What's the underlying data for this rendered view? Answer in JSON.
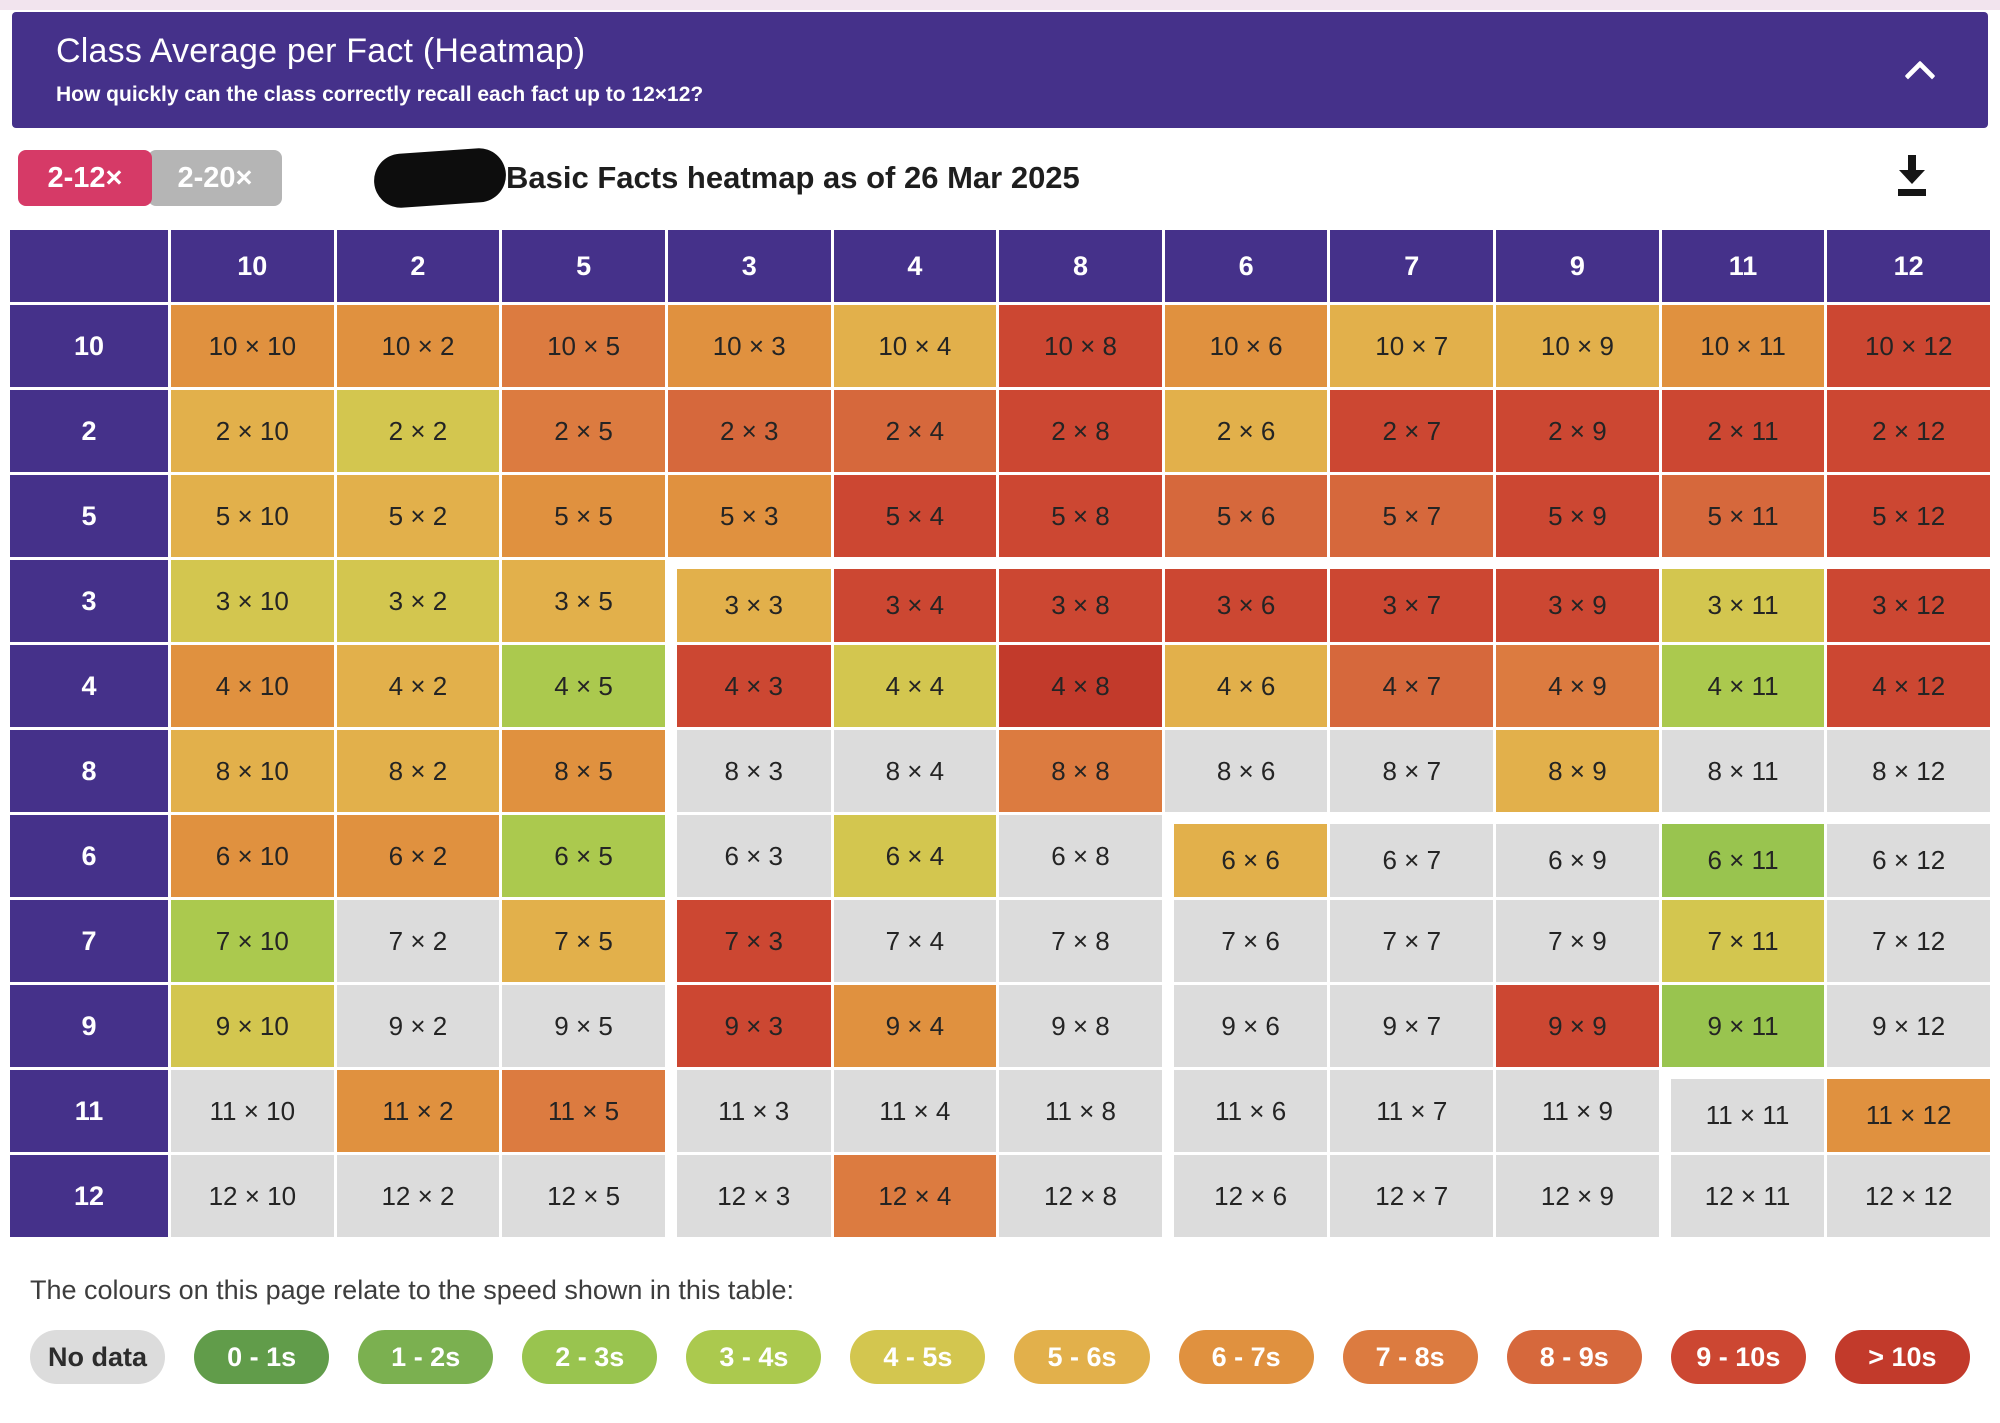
{
  "header": {
    "title": "Class Average per Fact (Heatmap)",
    "subtitle": "How quickly can the class correctly recall each fact up to 12×12?",
    "bg_color": "#45318a",
    "collapse_icon": "chevron-up"
  },
  "toolbar": {
    "buttons": [
      {
        "label": "2-12×",
        "active": true,
        "color": "#d63a67"
      },
      {
        "label": "2-20×",
        "active": false,
        "color": "#b5b5b5"
      }
    ],
    "redacted_class_name": true,
    "title": "Basic Facts heatmap as of 26 Mar 2025",
    "download_icon": "download-arrow"
  },
  "heatmap": {
    "type": "heatmap",
    "times_symbol": "×",
    "columns": [
      "10",
      "2",
      "5",
      "3",
      "4",
      "8",
      "6",
      "7",
      "9",
      "11",
      "12"
    ],
    "rows": [
      "10",
      "2",
      "5",
      "3",
      "4",
      "8",
      "6",
      "7",
      "9",
      "11",
      "12"
    ],
    "group_starts": [
      3,
      6,
      9
    ],
    "cell_buckets": [
      [
        "6-7",
        "6-7",
        "7-8",
        "6-7",
        "5-6",
        "9-10",
        "6-7",
        "5-6",
        "5-6",
        "6-7",
        "9-10"
      ],
      [
        "5-6",
        "4-5",
        "7-8",
        "8-9",
        "8-9",
        "9-10",
        "5-6",
        "9-10",
        "9-10",
        "9-10",
        "9-10"
      ],
      [
        "5-6",
        "5-6",
        "6-7",
        "6-7",
        "9-10",
        "9-10",
        "8-9",
        "8-9",
        "9-10",
        "8-9",
        "9-10"
      ],
      [
        "4-5",
        "4-5",
        "5-6",
        "5-6",
        "9-10",
        "9-10",
        "9-10",
        "9-10",
        "9-10",
        "4-5",
        "9-10"
      ],
      [
        "6-7",
        "5-6",
        "3-4",
        "9-10",
        "4-5",
        "10+",
        "5-6",
        "8-9",
        "7-8",
        "3-4",
        "9-10"
      ],
      [
        "5-6",
        "5-6",
        "6-7",
        "nd",
        "nd",
        "7-8",
        "nd",
        "nd",
        "5-6",
        "nd",
        "nd"
      ],
      [
        "6-7",
        "6-7",
        "3-4",
        "nd",
        "4-5",
        "nd",
        "5-6",
        "nd",
        "nd",
        "2-3",
        "nd"
      ],
      [
        "3-4",
        "nd",
        "5-6",
        "9-10",
        "nd",
        "nd",
        "nd",
        "nd",
        "nd",
        "4-5",
        "nd"
      ],
      [
        "4-5",
        "nd",
        "nd",
        "9-10",
        "6-7",
        "nd",
        "nd",
        "nd",
        "9-10",
        "2-3",
        "nd"
      ],
      [
        "nd",
        "6-7",
        "7-8",
        "nd",
        "nd",
        "nd",
        "nd",
        "nd",
        "nd",
        "nd",
        "6-7"
      ],
      [
        "nd",
        "nd",
        "nd",
        "nd",
        "7-8",
        "nd",
        "nd",
        "nd",
        "nd",
        "nd",
        "nd"
      ]
    ]
  },
  "palette": {
    "nd": "#dcdcdc",
    "0-1": "#619c4a",
    "1-2": "#7bb050",
    "2-3": "#99c44f",
    "3-4": "#abc94e",
    "4-5": "#d3c64f",
    "5-6": "#e2b04b",
    "6-7": "#e0913f",
    "7-8": "#dc7b40",
    "8-9": "#d6683c",
    "9-10": "#cc4732",
    "10+": "#c23a2b"
  },
  "legend": {
    "caption": "The colours on this page relate to the speed shown in this table:",
    "items": [
      {
        "label": "No data",
        "bucket": "nd"
      },
      {
        "label": "0 - 1s",
        "bucket": "0-1"
      },
      {
        "label": "1 - 2s",
        "bucket": "1-2"
      },
      {
        "label": "2 - 3s",
        "bucket": "2-3"
      },
      {
        "label": "3 - 4s",
        "bucket": "3-4"
      },
      {
        "label": "4 - 5s",
        "bucket": "4-5"
      },
      {
        "label": "5 - 6s",
        "bucket": "5-6"
      },
      {
        "label": "6 - 7s",
        "bucket": "6-7"
      },
      {
        "label": "7 - 8s",
        "bucket": "7-8"
      },
      {
        "label": "8 - 9s",
        "bucket": "8-9"
      },
      {
        "label": "9 - 10s",
        "bucket": "9-10"
      },
      {
        "label": "> 10s",
        "bucket": "10+"
      }
    ]
  }
}
